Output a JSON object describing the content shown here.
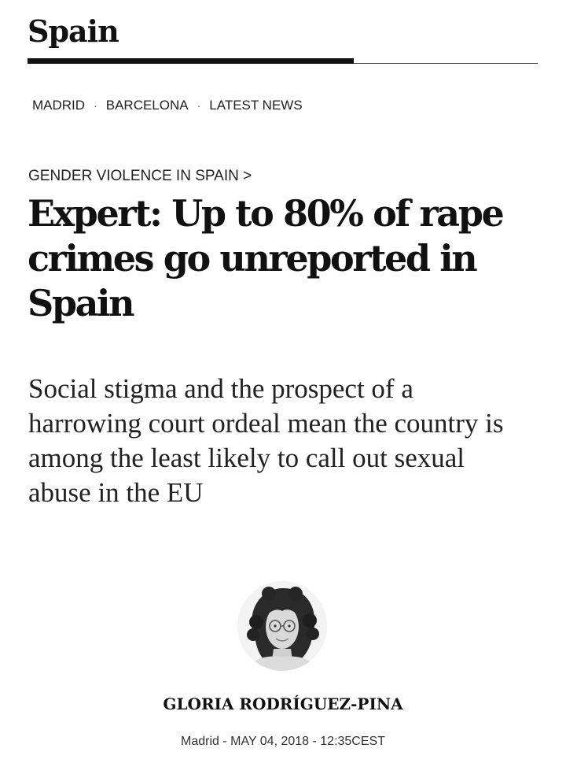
{
  "section": {
    "title": "Spain"
  },
  "subnav": {
    "items": [
      "MADRID",
      "BARCELONA",
      "LATEST NEWS"
    ],
    "separator": "·"
  },
  "article": {
    "kicker": "GENDER VIOLENCE IN SPAIN >",
    "headline": "Expert: Up to 80% of rape crimes go unreported in Spain",
    "subtitle": "Social stigma and the prospect of a harrowing court ordeal mean the country is among the least likely to call out sexual abuse in the EU"
  },
  "byline": {
    "author": "GLORIA RODRÍGUEZ-PINA",
    "location": "Madrid",
    "date": "MAY 04, 2018",
    "time": "12:35CEST",
    "separator": " - "
  }
}
